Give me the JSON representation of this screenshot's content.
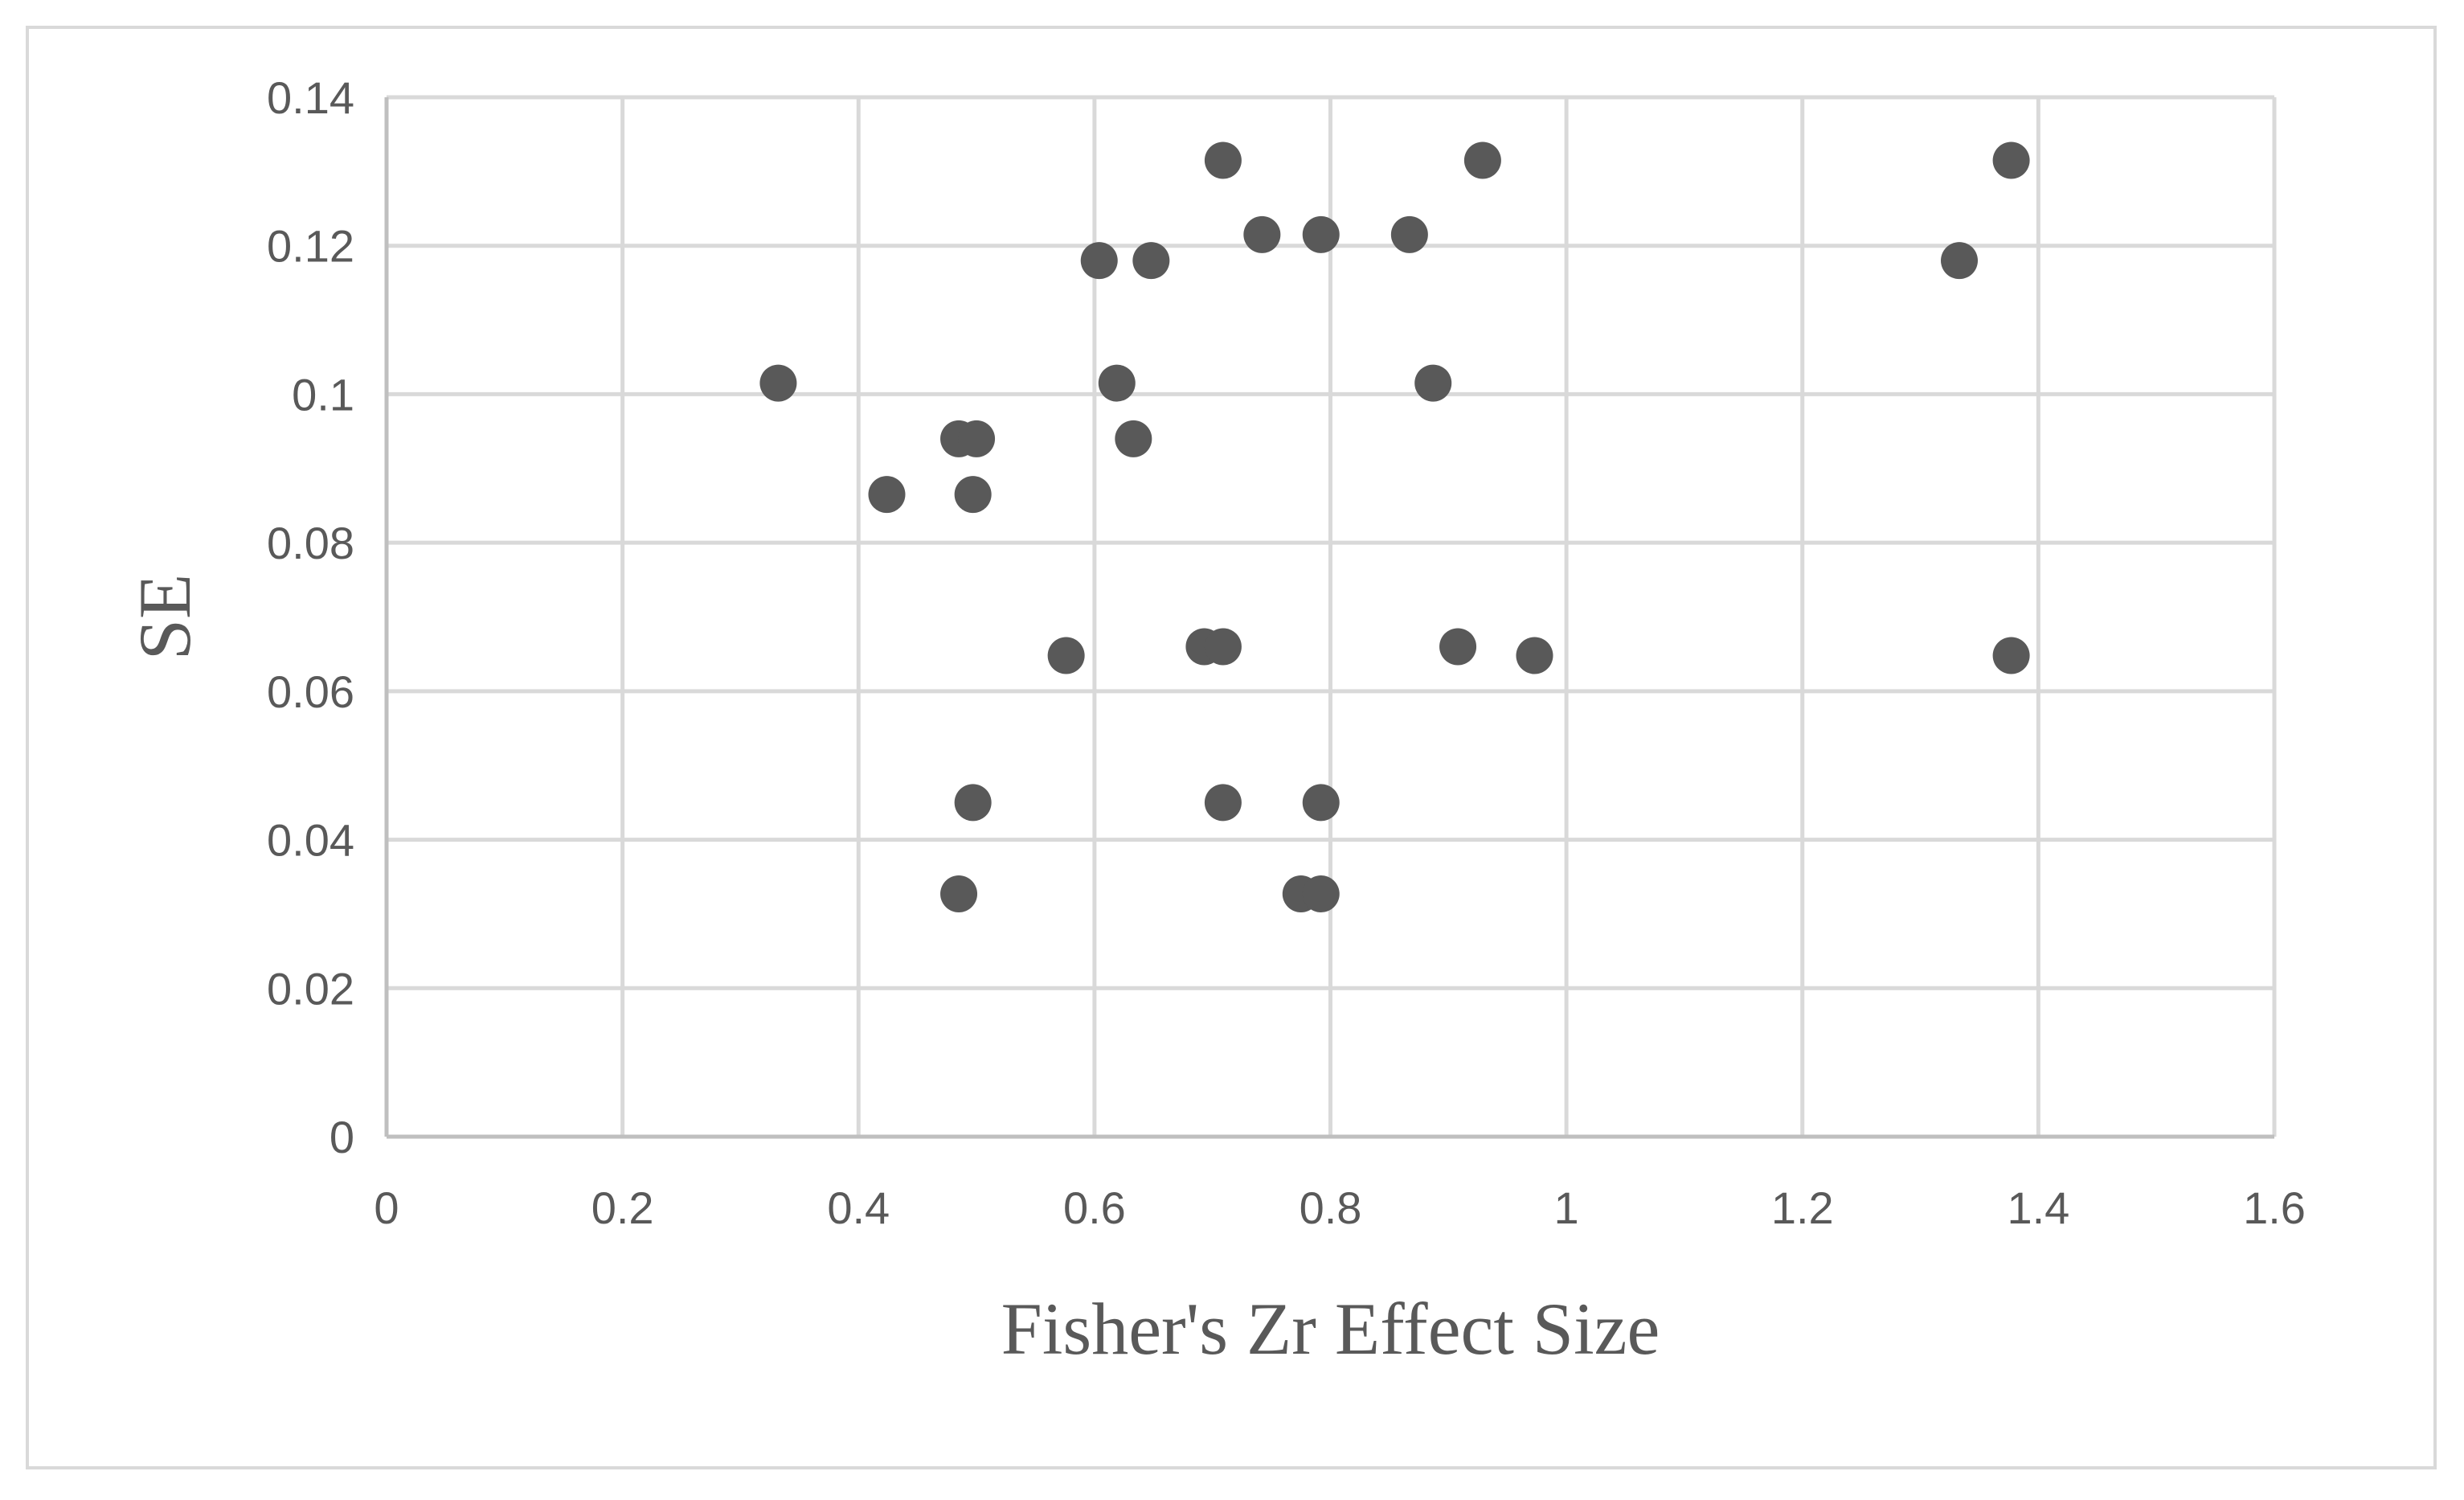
{
  "chart_data": {
    "type": "scatter",
    "title": "",
    "xlabel": "Fisher's Zr Effect Size",
    "ylabel": "SE",
    "xlim": [
      0,
      1.6
    ],
    "ylim": [
      0,
      0.14
    ],
    "x_ticks": [
      "0",
      "0.2",
      "0.4",
      "0.6",
      "0.8",
      "1",
      "1.2",
      "1.4",
      "1.6"
    ],
    "y_ticks": [
      "0",
      "0.02",
      "0.04",
      "0.06",
      "0.08",
      "0.1",
      "0.12",
      "0.14"
    ],
    "grid": true,
    "legend": "none",
    "marker_color": "#595959",
    "points": [
      {
        "x": 0.709,
        "y": 0.1315
      },
      {
        "x": 0.929,
        "y": 0.1315
      },
      {
        "x": 1.377,
        "y": 0.1315
      },
      {
        "x": 0.742,
        "y": 0.1215
      },
      {
        "x": 0.792,
        "y": 0.1215
      },
      {
        "x": 0.867,
        "y": 0.1215
      },
      {
        "x": 0.604,
        "y": 0.118
      },
      {
        "x": 0.648,
        "y": 0.118
      },
      {
        "x": 1.333,
        "y": 0.118
      },
      {
        "x": 0.332,
        "y": 0.1015
      },
      {
        "x": 0.619,
        "y": 0.1015
      },
      {
        "x": 0.887,
        "y": 0.1015
      },
      {
        "x": 0.485,
        "y": 0.094
      },
      {
        "x": 0.5,
        "y": 0.094
      },
      {
        "x": 0.633,
        "y": 0.094
      },
      {
        "x": 0.424,
        "y": 0.0865
      },
      {
        "x": 0.497,
        "y": 0.0865
      },
      {
        "x": 0.576,
        "y": 0.0648
      },
      {
        "x": 0.693,
        "y": 0.066
      },
      {
        "x": 0.709,
        "y": 0.066
      },
      {
        "x": 0.908,
        "y": 0.066
      },
      {
        "x": 0.973,
        "y": 0.0648
      },
      {
        "x": 1.377,
        "y": 0.0648
      },
      {
        "x": 0.497,
        "y": 0.045
      },
      {
        "x": 0.709,
        "y": 0.045
      },
      {
        "x": 0.792,
        "y": 0.045
      },
      {
        "x": 0.485,
        "y": 0.0327
      },
      {
        "x": 0.775,
        "y": 0.0327
      },
      {
        "x": 0.792,
        "y": 0.0327
      }
    ]
  }
}
